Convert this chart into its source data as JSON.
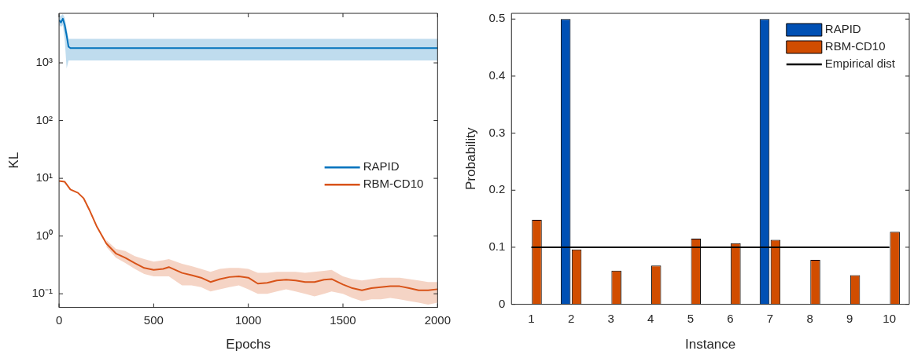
{
  "chart_data": [
    {
      "type": "line",
      "xlabel": "Epochs",
      "ylabel": "KL",
      "log": "y",
      "legend": "right",
      "xlim": [
        0,
        2000
      ],
      "xticks": [
        0,
        500,
        1000,
        1500,
        2000
      ],
      "ylim": [
        0.058,
        7200
      ],
      "yticks": [
        {
          "value": 0.1,
          "label": "10⁻¹"
        },
        {
          "value": 1,
          "label": "10⁰"
        },
        {
          "value": 10,
          "label": "10¹"
        },
        {
          "value": 100,
          "label": "10²"
        },
        {
          "value": 1000,
          "label": "10³"
        }
      ],
      "series": [
        {
          "name": "RAPID",
          "color": "#0072bd",
          "x": [
            0,
            10,
            20,
            30,
            40,
            50,
            60,
            100,
            2000
          ],
          "values": [
            5500,
            5000,
            5800,
            4500,
            3000,
            1900,
            1800,
            1800,
            1800
          ],
          "lower": [
            4500,
            4200,
            4500,
            2500,
            800,
            1100,
            1100,
            1100,
            1100
          ],
          "upper": [
            6800,
            6500,
            7000,
            6000,
            4000,
            2600,
            2600,
            2600,
            2600
          ]
        },
        {
          "name": "RBM-CD10",
          "color": "#d95319",
          "x": [
            0,
            30,
            60,
            100,
            130,
            160,
            200,
            250,
            300,
            350,
            400,
            450,
            500,
            550,
            580,
            650,
            700,
            750,
            800,
            850,
            900,
            950,
            1000,
            1050,
            1100,
            1150,
            1200,
            1250,
            1300,
            1350,
            1400,
            1440,
            1500,
            1550,
            1600,
            1650,
            1700,
            1750,
            1800,
            1850,
            1900,
            1950,
            2000
          ],
          "values": [
            9,
            8.7,
            6.4,
            5.6,
            4.5,
            2.85,
            1.45,
            0.74,
            0.5,
            0.42,
            0.34,
            0.28,
            0.26,
            0.27,
            0.29,
            0.23,
            0.21,
            0.19,
            0.16,
            0.18,
            0.195,
            0.2,
            0.19,
            0.15,
            0.155,
            0.17,
            0.175,
            0.17,
            0.16,
            0.16,
            0.175,
            0.18,
            0.145,
            0.125,
            0.115,
            0.125,
            0.13,
            0.135,
            0.135,
            0.125,
            0.115,
            0.115,
            0.12
          ],
          "lower": [
            null,
            null,
            null,
            null,
            null,
            null,
            null,
            0.65,
            0.42,
            0.34,
            0.27,
            0.22,
            0.2,
            0.2,
            0.2,
            0.14,
            0.14,
            0.13,
            0.11,
            0.12,
            0.13,
            0.14,
            0.12,
            0.1,
            0.1,
            0.11,
            0.12,
            0.11,
            0.1,
            0.09,
            0.1,
            0.11,
            0.1,
            0.085,
            0.075,
            0.08,
            0.08,
            0.085,
            0.08,
            0.075,
            0.07,
            0.065,
            0.07
          ],
          "upper": [
            null,
            null,
            null,
            null,
            null,
            null,
            null,
            0.85,
            0.6,
            0.55,
            0.45,
            0.4,
            0.36,
            0.38,
            0.4,
            0.33,
            0.3,
            0.27,
            0.24,
            0.27,
            0.28,
            0.28,
            0.27,
            0.23,
            0.23,
            0.24,
            0.24,
            0.24,
            0.23,
            0.24,
            0.25,
            0.26,
            0.2,
            0.18,
            0.17,
            0.18,
            0.19,
            0.19,
            0.19,
            0.18,
            0.17,
            0.16,
            0.16
          ]
        }
      ]
    },
    {
      "type": "bar",
      "xlabel": "Instance",
      "ylabel": "Probability",
      "legend": "top right",
      "categories": [
        "1",
        "2",
        "3",
        "4",
        "5",
        "6",
        "7",
        "8",
        "9",
        "10"
      ],
      "ylim": [
        0,
        0.51
      ],
      "yticks": [
        0,
        0.1,
        0.2,
        0.3,
        0.4,
        0.5
      ],
      "series": [
        {
          "name": "RAPID",
          "color": "#0050b4",
          "values": [
            0,
            0.5,
            0,
            0,
            0,
            0,
            0.5,
            0,
            0,
            0
          ]
        },
        {
          "name": "RBM-CD10",
          "color": "#d14d00",
          "values": [
            0.148,
            0.096,
            0.059,
            0.068,
            0.115,
            0.107,
            0.113,
            0.078,
            0.051,
            0.127
          ]
        }
      ],
      "ref_lines": [
        {
          "axis": "y",
          "value": 0.1,
          "label": "Empirical dist",
          "color": "#000000"
        }
      ]
    }
  ]
}
